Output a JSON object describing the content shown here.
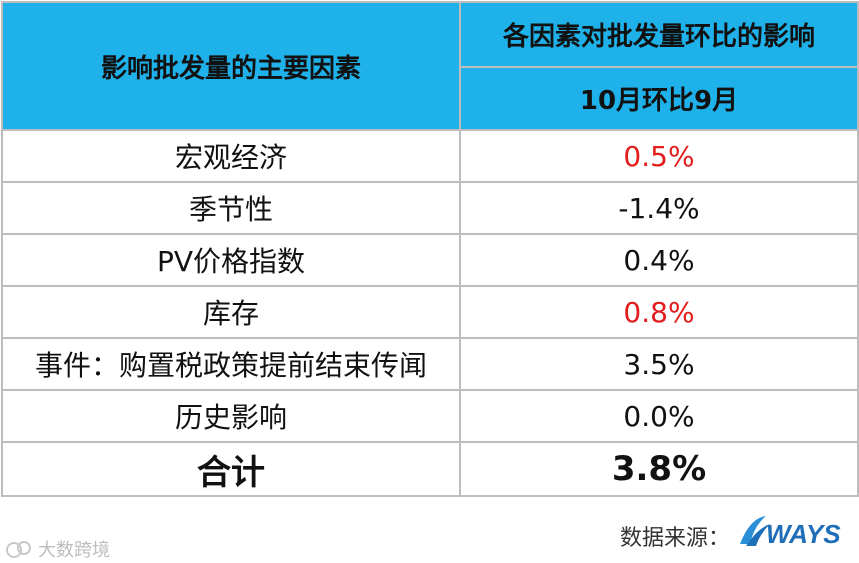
{
  "table": {
    "header_factor": "影响批发量的主要因素",
    "header_impact": "各因素对批发量环比的影响",
    "header_period": "10月环比9月",
    "rows": [
      {
        "factor": "宏观经济",
        "value": "0.5%",
        "value_color": "#e31c1c"
      },
      {
        "factor": "季节性",
        "value": "-1.4%",
        "value_color": "#111111"
      },
      {
        "factor": "PV价格指数",
        "value": "0.4%",
        "value_color": "#111111"
      },
      {
        "factor": "库存",
        "value": "0.8%",
        "value_color": "#e31c1c"
      },
      {
        "factor": "事件：购置税政策提前结束传闻",
        "value": "3.5%",
        "value_color": "#111111"
      },
      {
        "factor": "历史影响",
        "value": "0.0%",
        "value_color": "#111111"
      }
    ],
    "total": {
      "factor": "合计",
      "value": "3.8%"
    }
  },
  "footer": {
    "source_label": "数据来源：",
    "logo_text": "WAYS",
    "watermark_text": "大数跨境"
  },
  "colors": {
    "header_bg": "#1fb2ea",
    "highlight_red": "#e31c1c",
    "logo_blue": "#1e6fb8"
  }
}
